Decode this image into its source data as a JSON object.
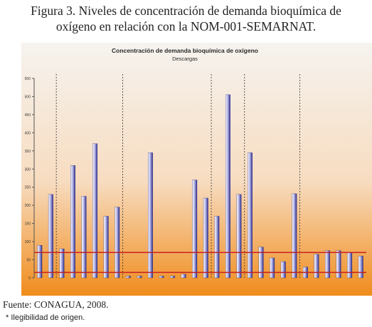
{
  "figure": {
    "title_line1": "Figura 3. Niveles de concentración de demanda bioquímica de",
    "title_line2": "oxígeno en relación con la NOM-001-SEMARNAT."
  },
  "source": "Fuente: CONAGUA, 2008.",
  "note": "* Ilegibilidad de origen.",
  "colors": {
    "background_top": "#f6f3ef",
    "background_bottom": "#f08c1c",
    "bar_light": "#ffffff",
    "bar_dark": "#2c2c8e",
    "limit_line": "#c62020",
    "group_box": "#202b8e"
  },
  "chart_data": {
    "type": "bar",
    "title": "Concentración de demanda bioquímica de oxígeno",
    "subtitle": "Descargas",
    "ylim": [
      0,
      550
    ],
    "yticks": [
      0,
      50,
      100,
      150,
      200,
      250,
      300,
      350,
      400,
      450,
      500,
      550
    ],
    "grid": false,
    "values": [
      90,
      230,
      80,
      310,
      225,
      370,
      170,
      195,
      5,
      5,
      345,
      5,
      5,
      10,
      270,
      220,
      170,
      505,
      230,
      345,
      85,
      55,
      45,
      232,
      30,
      65,
      75,
      75,
      70,
      60
    ],
    "data_labels": [
      "",
      "",
      "",
      "",
      "",
      "",
      "",
      "",
      "",
      "",
      "",
      "",
      "",
      "",
      "",
      "",
      "",
      "",
      "",
      "",
      "",
      "",
      "",
      "",
      "",
      "",
      "",
      "",
      "",
      ""
    ],
    "group_separators_after": [
      1,
      7,
      15,
      18,
      23
    ],
    "limit_lines": [
      70,
      15
    ],
    "legend_position": "right"
  }
}
